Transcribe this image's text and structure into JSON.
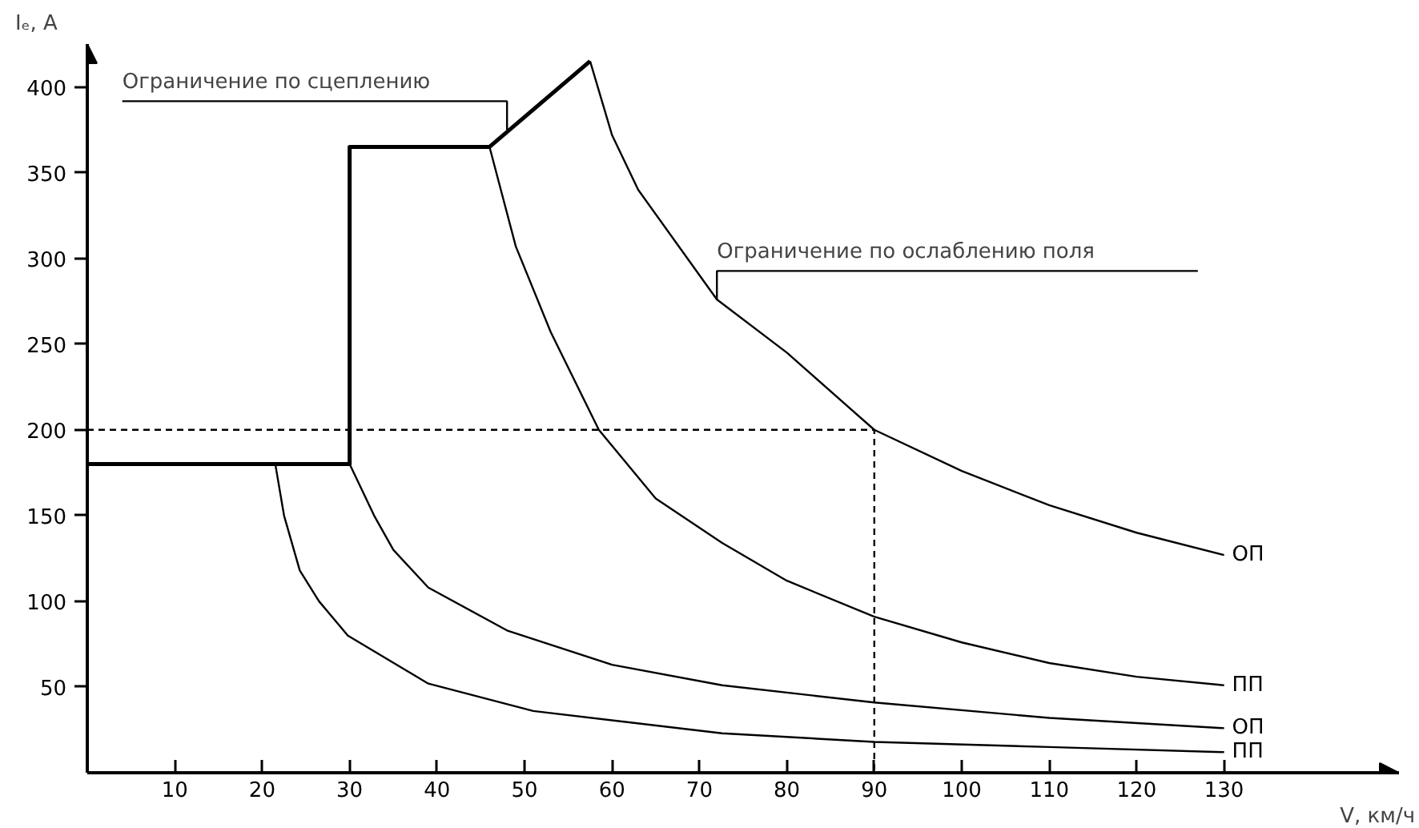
{
  "chart_data": {
    "type": "line",
    "xlabel": "V, км/ч",
    "ylabel": "Iₑ, A",
    "xlim": [
      0,
      150
    ],
    "ylim": [
      0,
      425
    ],
    "xticks": [
      10,
      20,
      30,
      40,
      50,
      60,
      70,
      80,
      90,
      100,
      110,
      120,
      130
    ],
    "yticks": [
      50,
      100,
      150,
      200,
      250,
      300,
      350,
      400
    ],
    "grid": false,
    "marker": "none",
    "series": [
      {
        "color": "#000000",
        "x": [
          0,
          30,
          30,
          46,
          57.5
        ],
        "values": [
          180,
          180,
          365,
          365,
          415
        ]
      },
      {
        "name": "ОП",
        "color": "#000000",
        "x": [
          57.5,
          60,
          63,
          72,
          80,
          90,
          100,
          110,
          120,
          130
        ],
        "values": [
          415,
          372,
          340,
          276,
          245,
          200,
          176,
          156,
          140,
          127
        ]
      },
      {
        "name": "ПП",
        "color": "#000000",
        "x": [
          46,
          49,
          53,
          58.5,
          65,
          72.6,
          80,
          90,
          100,
          110,
          120,
          130
        ],
        "values": [
          365,
          307,
          257,
          200,
          160,
          134,
          112,
          91,
          76,
          64,
          56,
          51
        ]
      },
      {
        "name": "ОП",
        "color": "#000000",
        "x": [
          30,
          32.8,
          35,
          39,
          48,
          60,
          72.6,
          90,
          110,
          130
        ],
        "values": [
          180,
          150,
          130,
          108,
          83,
          63,
          51,
          41,
          32,
          26
        ]
      },
      {
        "name": "ПП",
        "color": "#000000",
        "x": [
          21.5,
          22.5,
          24.3,
          26.5,
          29.8,
          39,
          51,
          72.6,
          90,
          110,
          130
        ],
        "values": [
          180,
          150,
          118,
          100,
          80,
          52,
          36,
          23,
          18,
          15,
          12
        ]
      },
      {
        "color": "#000000",
        "line_style": "dashed",
        "x": [
          0,
          90,
          90
        ],
        "values": [
          200,
          200,
          0
        ]
      }
    ],
    "annotations": [
      {
        "text": "Ограничение по сцеплению",
        "x": 48,
        "y": 375
      },
      {
        "text": "Ограничение по ослаблению поля",
        "x": 72,
        "y": 276
      }
    ]
  }
}
